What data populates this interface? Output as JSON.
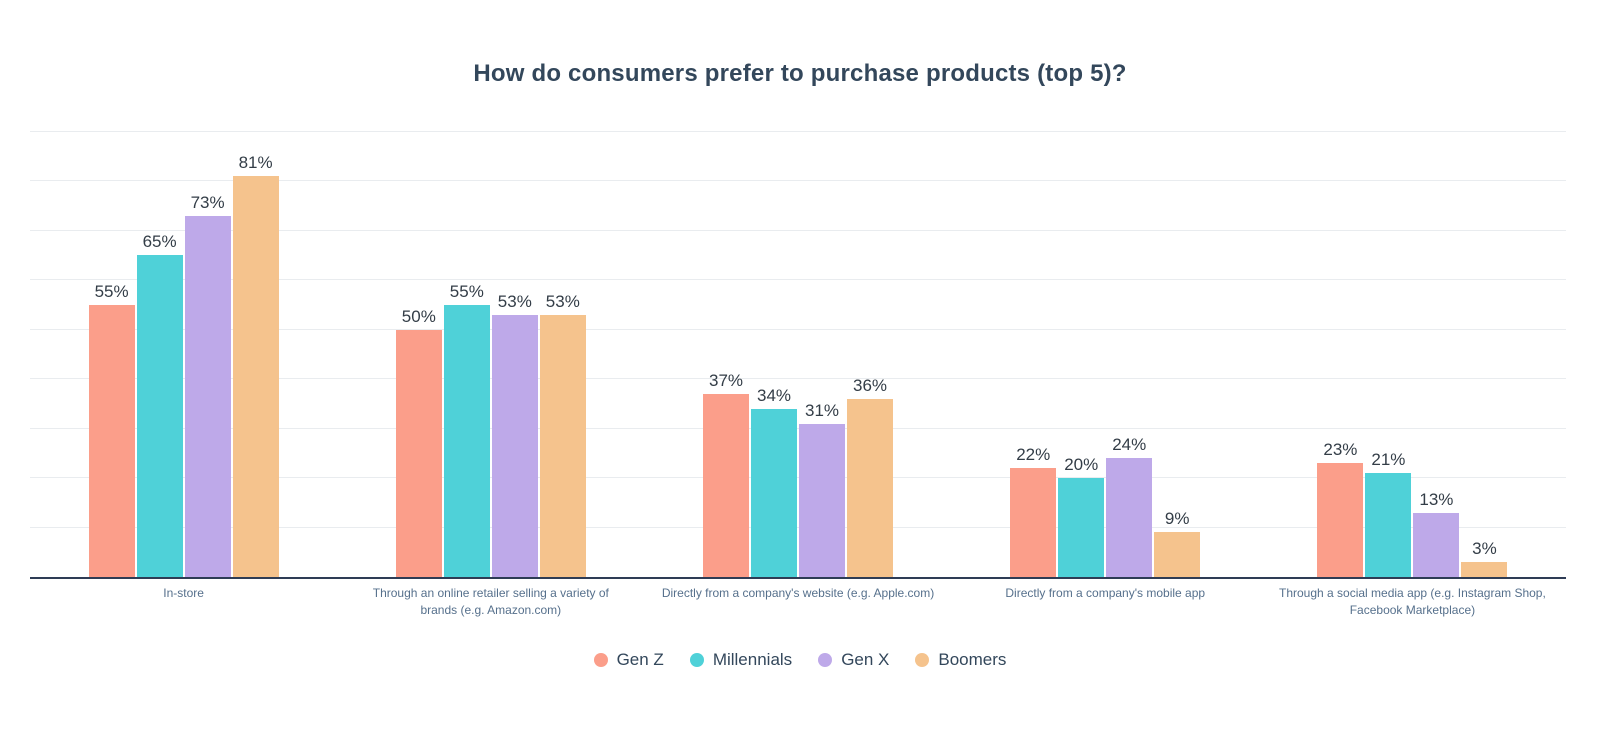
{
  "chart_data": {
    "type": "bar",
    "title": "How do consumers prefer to purchase products (top 5)?",
    "categories": [
      "In-store",
      "Through an online retailer selling a variety of\nbrands (e.g. Amazon.com)",
      "Directly from a company's website (e.g. Apple.com)",
      "Directly from a company's mobile app",
      "Through a social media app (e.g. Instagram Shop,\nFacebook Marketplace)"
    ],
    "series": [
      {
        "name": "Gen Z",
        "color": "#FB9E8A",
        "values": [
          55,
          50,
          37,
          22,
          23
        ]
      },
      {
        "name": "Millennials",
        "color": "#4FD1D8",
        "values": [
          65,
          55,
          34,
          20,
          21
        ]
      },
      {
        "name": "Gen X",
        "color": "#BEA9E9",
        "values": [
          73,
          53,
          31,
          24,
          13
        ]
      },
      {
        "name": "Boomers",
        "color": "#F5C38D",
        "values": [
          81,
          53,
          36,
          9,
          3
        ]
      }
    ],
    "value_suffix": "%",
    "ylim": [
      0,
      100
    ],
    "grid": "on",
    "gridlines": {
      "step": 10,
      "max": 90,
      "color": "#e9ecef"
    },
    "legend_position": "bottom",
    "colors": {
      "title": "#33475B",
      "value_label": "#333d47",
      "category_label": "#56708C",
      "legend_text": "#33475B",
      "axis_line": "#2e3c55"
    },
    "xlabel": "",
    "ylabel": ""
  }
}
